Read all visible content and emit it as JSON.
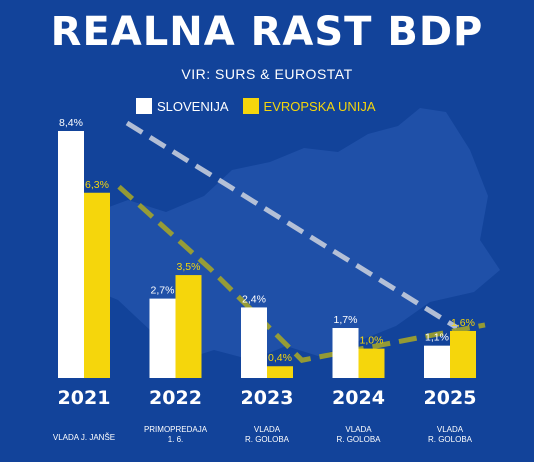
{
  "title": "REALNA RAST BDP",
  "source": "VIR: SURS & EUROSTAT",
  "colors": {
    "background": "#12439a",
    "slovenia": "#ffffff",
    "eu": "#f5d60c",
    "slovenia_trend": "#c4ccdc",
    "eu_trend": "#a3a42a"
  },
  "chart_data": {
    "type": "bar",
    "categories": [
      "2021",
      "2022",
      "2023",
      "2024",
      "2025"
    ],
    "category_sublabels": [
      [
        "VLADA J. JANŠE"
      ],
      [
        "PRIMOPREDAJA",
        "1. 6."
      ],
      [
        "VLADA",
        "R. GOLOBA"
      ],
      [
        "VLADA",
        "R. GOLOBA"
      ],
      [
        "VLADA",
        "R. GOLOBA"
      ]
    ],
    "series": [
      {
        "name": "SLOVENIJA",
        "values": [
          8.4,
          2.7,
          2.4,
          1.7,
          1.1
        ],
        "labels": [
          "8,4%",
          "2,7%",
          "2,4%",
          "1,7%",
          "1,1%"
        ]
      },
      {
        "name": "EVROPSKA UNIJA",
        "values": [
          6.3,
          3.5,
          0.4,
          1.0,
          1.6
        ],
        "labels": [
          "6,3%",
          "3,5%",
          "0,4%",
          "1,0%",
          "1,6%"
        ]
      }
    ],
    "ylim": [
      0,
      8.4
    ],
    "legend_position": "top-center",
    "trend_lines": "dashed"
  }
}
